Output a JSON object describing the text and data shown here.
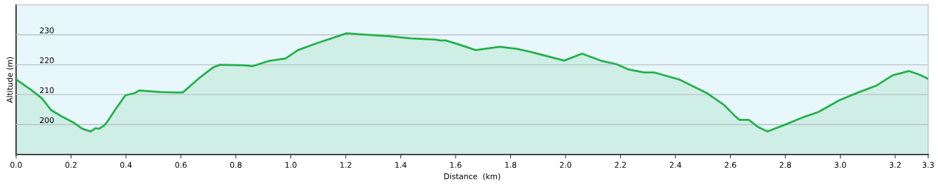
{
  "chart_data": {
    "type": "area",
    "xlabel": "Distance  (km)",
    "ylabel": "Altitude (m)",
    "color": "#22b04a",
    "x": [
      0,
      0.055,
      0.094,
      0.127,
      0.165,
      0.212,
      0.241,
      0.271,
      0.289,
      0.302,
      0.322,
      0.339,
      0.36,
      0.398,
      0.431,
      0.448,
      0.525,
      0.606,
      0.67,
      0.717,
      0.742,
      0.829,
      0.86,
      0.917,
      0.981,
      1.026,
      1.095,
      1.203,
      1.361,
      1.437,
      1.526,
      1.544,
      1.564,
      1.614,
      1.673,
      1.761,
      1.823,
      1.868,
      1.995,
      2.06,
      2.134,
      2.185,
      2.23,
      2.286,
      2.324,
      2.413,
      2.515,
      2.578,
      2.615,
      2.633,
      2.667,
      2.699,
      2.735,
      2.805,
      2.869,
      2.92,
      2.996,
      3.064,
      3.131,
      3.191,
      3.25,
      3.288,
      3.32
    ],
    "values": [
      215.1,
      211.6,
      208.8,
      204.9,
      202.8,
      200.5,
      198.6,
      197.7,
      198.8,
      198.6,
      199.8,
      201.9,
      204.9,
      209.8,
      210.5,
      211.4,
      210.9,
      210.7,
      215.8,
      219.1,
      220,
      219.8,
      219.5,
      221.2,
      222.1,
      224.9,
      227.2,
      230.5,
      229.5,
      228.8,
      228.4,
      228.1,
      228.1,
      226.7,
      224.9,
      226,
      225.3,
      224.4,
      221.4,
      223.7,
      221.2,
      220.2,
      218.4,
      217.4,
      217.4,
      215.1,
      210.5,
      206.5,
      203,
      201.6,
      201.6,
      199.3,
      197.7,
      200.2,
      202.6,
      204.2,
      208.1,
      210.7,
      213,
      216.5,
      217.9,
      216.7,
      215.3
    ],
    "xlim": [
      0,
      3.32
    ],
    "xticks": [
      {
        "value": 0,
        "label": "0.0"
      },
      0.2,
      0.4,
      0.6,
      0.8,
      {
        "value": 1,
        "label": "1.0"
      },
      1.2,
      1.4,
      1.6,
      1.8,
      {
        "value": 2,
        "label": "2.0"
      },
      2.2,
      2.4,
      2.6,
      2.8,
      {
        "value": 3,
        "label": "3.0"
      },
      3.2,
      {
        "value": 3.32,
        "label": "3.3"
      }
    ],
    "ylim": [
      190,
      240
    ],
    "yticks": [
      200,
      210,
      220,
      230
    ],
    "grid": "y"
  }
}
